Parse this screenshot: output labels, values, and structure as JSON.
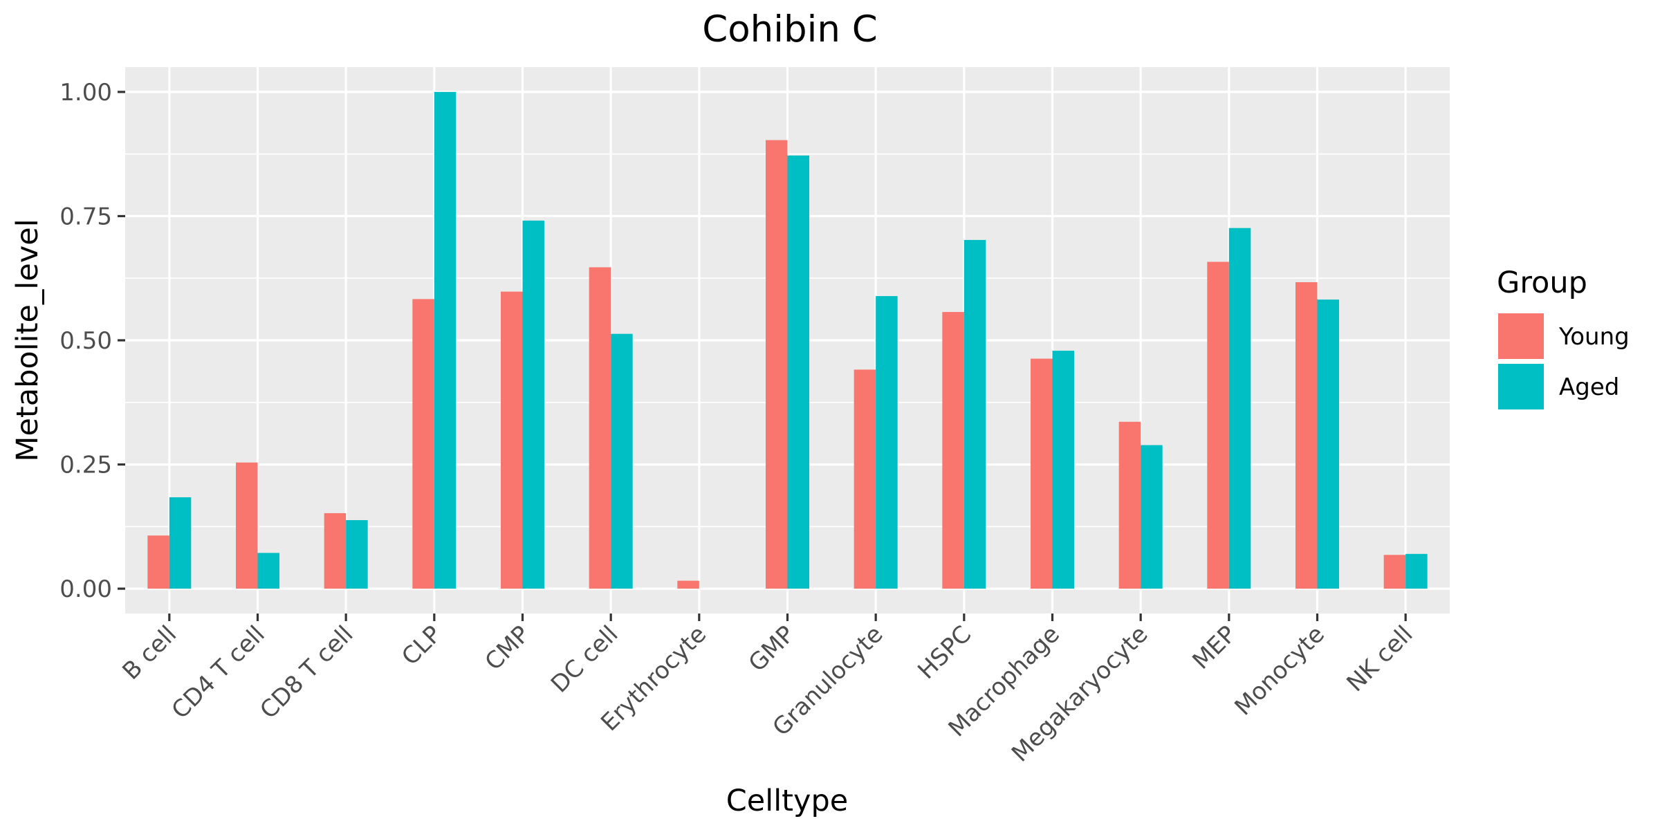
{
  "chart_data": {
    "type": "bar",
    "title": "Cohibin C",
    "xlabel": "Celltype",
    "ylabel": "Metabolite_level",
    "categories": [
      "B cell",
      "CD4 T cell",
      "CD8 T cell",
      "CLP",
      "CMP",
      "DC cell",
      "Erythrocyte",
      "GMP",
      "Granulocyte",
      "HSPC",
      "Macrophage",
      "Megakaryocyte",
      "MEP",
      "Monocyte",
      "NK cell"
    ],
    "series": [
      {
        "name": "Young",
        "color": "#F8766D",
        "values": [
          0.107,
          0.254,
          0.152,
          0.583,
          0.598,
          0.647,
          0.016,
          0.903,
          0.441,
          0.557,
          0.463,
          0.336,
          0.658,
          0.617,
          0.068
        ]
      },
      {
        "name": "Aged",
        "color": "#00BFC4",
        "values": [
          0.184,
          0.072,
          0.138,
          1.0,
          0.741,
          0.513,
          0.0,
          0.872,
          0.589,
          0.702,
          0.479,
          0.289,
          0.726,
          0.582,
          0.07
        ]
      }
    ],
    "ylim": [
      -0.05,
      1.05
    ],
    "yticks": [
      0,
      0.25,
      0.5,
      0.75,
      1
    ],
    "ytick_labels": [
      "0.00",
      "0.25",
      "0.50",
      "0.75",
      "1.00"
    ],
    "grid": true,
    "legend": {
      "title": "Group",
      "position": "right"
    }
  }
}
